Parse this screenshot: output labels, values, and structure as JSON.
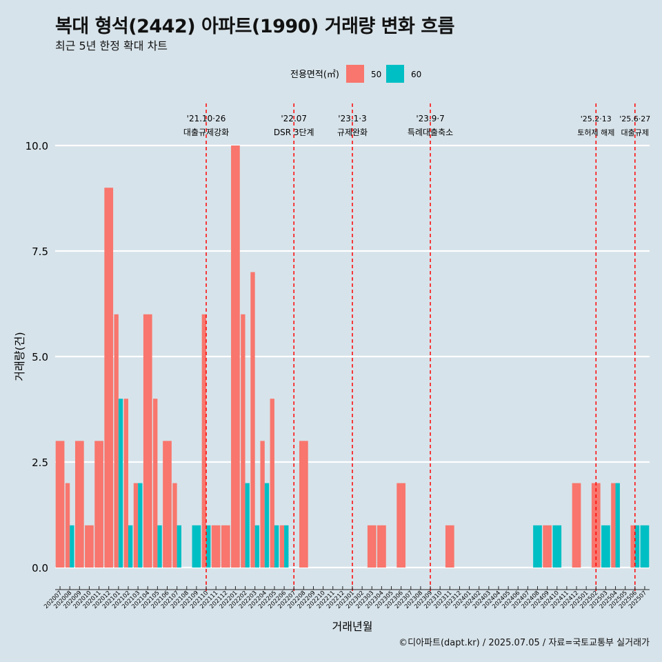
{
  "title": "복대 형석(2442) 아파트(1990) 거래량 변화 흐름",
  "subtitle": "최근 5년 한정 확대 차트",
  "caption": "©디아파트(dapt.kr) / 2025.07.05 / 자료=국토교통부 실거래가",
  "colors": {
    "background": "#d7e3ea",
    "s50": "#f8766d",
    "s60": "#00bfc4",
    "event_line": "#ff0000",
    "grid": "#ffffff"
  },
  "chart_data": {
    "type": "bar",
    "xlabel": "거래년월",
    "ylabel": "거래량(건)",
    "ylim": [
      0,
      10
    ],
    "y_ticks": [
      "0.0",
      "2.5",
      "5.0",
      "7.5",
      "10.0"
    ],
    "legend": {
      "title": "전용면적(㎡)",
      "position": "top"
    },
    "categories": [
      "202007",
      "202008",
      "202009",
      "202010",
      "202011",
      "202012",
      "202101",
      "202102",
      "202103",
      "202104",
      "202105",
      "202106",
      "202107",
      "202108",
      "202109",
      "202110",
      "202111",
      "202112",
      "202201",
      "202202",
      "202203",
      "202204",
      "202205",
      "202206",
      "202207",
      "202208",
      "202209",
      "202210",
      "202211",
      "202212",
      "202301",
      "202302",
      "202303",
      "202304",
      "202305",
      "202306",
      "202307",
      "202308",
      "202309",
      "202310",
      "202311",
      "202312",
      "202401",
      "202402",
      "202403",
      "202404",
      "202405",
      "202406",
      "202407",
      "202408",
      "202409",
      "202410",
      "202411",
      "202412",
      "202501",
      "202502",
      "202503",
      "202504",
      "202505",
      "202506",
      "202507"
    ],
    "series": [
      {
        "name": "50",
        "values": [
          3,
          2,
          3,
          1,
          3,
          9,
          6,
          4,
          2,
          6,
          4,
          3,
          2,
          0,
          0,
          6,
          1,
          1,
          10,
          6,
          7,
          3,
          4,
          1,
          0,
          3,
          0,
          0,
          0,
          0,
          0,
          0,
          1,
          1,
          0,
          2,
          0,
          0,
          0,
          0,
          1,
          0,
          0,
          0,
          0,
          0,
          0,
          0,
          0,
          0,
          1,
          0,
          0,
          2,
          0,
          2,
          0,
          2,
          0,
          1,
          0
        ]
      },
      {
        "name": "60",
        "values": [
          0,
          1,
          0,
          0,
          0,
          0,
          4,
          1,
          2,
          0,
          1,
          0,
          1,
          0,
          1,
          1,
          0,
          0,
          0,
          2,
          1,
          2,
          1,
          1,
          0,
          0,
          0,
          0,
          0,
          0,
          0,
          0,
          0,
          0,
          0,
          0,
          0,
          0,
          0,
          0,
          0,
          0,
          0,
          0,
          0,
          0,
          0,
          0,
          0,
          1,
          0,
          1,
          0,
          0,
          0,
          0,
          1,
          2,
          0,
          1,
          1
        ]
      }
    ],
    "events": [
      {
        "month": "202110",
        "date": "'21.10·26",
        "label": "대출규제강화"
      },
      {
        "month": "202207",
        "date": "'22.07",
        "label": "DSR 3단계"
      },
      {
        "month": "202301",
        "date": "'23.1·3",
        "label": "규제완화"
      },
      {
        "month": "202309",
        "date": "'23.9·7",
        "label": "특례대출축소"
      },
      {
        "month": "202502",
        "date": "'25.2·13",
        "label": "토허제 해제"
      },
      {
        "month": "202506",
        "date": "'25.6·27",
        "label": "대출규제"
      }
    ]
  }
}
